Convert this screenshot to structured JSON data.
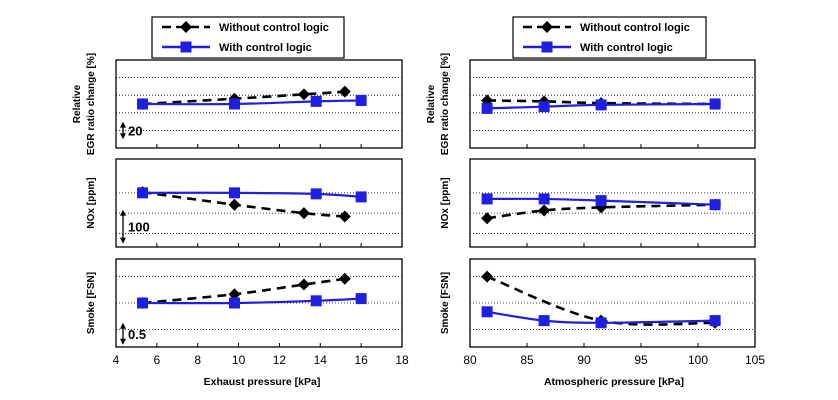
{
  "chart_data": [
    {
      "type": "line",
      "panel": "left",
      "xlabel": "Exhaust pressure   [kPa]",
      "xlim": [
        4,
        18
      ],
      "xticks": [
        4,
        6,
        8,
        10,
        12,
        14,
        16,
        18
      ],
      "legend": {
        "placement": "top",
        "entries": [
          {
            "label": "Without control logic",
            "color": "#000000",
            "marker": "diamond",
            "style": "dashed"
          },
          {
            "label": "With control logic",
            "color": "#1f1fe0",
            "marker": "square",
            "style": "solid"
          }
        ]
      },
      "subplots": [
        {
          "ylabel_lines": [
            "Relative",
            "EGR ratio change  [%]"
          ],
          "ylim": [
            -50,
            50
          ],
          "gridlines": [
            -30,
            -10,
            10,
            30
          ],
          "scale_bar": {
            "label": "20",
            "from": -40,
            "to": -20
          },
          "series": [
            {
              "name": "Without control logic",
              "x": [
                5.3,
                9.8,
                13.2,
                15.2
              ],
              "y": [
                0,
                6,
                11,
                14
              ]
            },
            {
              "name": "With control logic",
              "x": [
                5.3,
                9.8,
                13.8,
                16
              ],
              "y": [
                0,
                0,
                3,
                4
              ]
            }
          ]
        },
        {
          "ylabel_lines": [
            "NOx   [ppm]"
          ],
          "ylim": [
            -160,
            100
          ],
          "gridlines": [
            0,
            -60,
            -120
          ],
          "scale_bar": {
            "label": "100",
            "from": -150,
            "to": -50
          },
          "series": [
            {
              "name": "Without control logic",
              "x": [
                5.3,
                9.8,
                13.2,
                15.2
              ],
              "y": [
                2,
                -35,
                -60,
                -70
              ]
            },
            {
              "name": "With control logic",
              "x": [
                5.3,
                9.8,
                13.8,
                16
              ],
              "y": [
                0,
                0,
                -3,
                -12
              ]
            }
          ]
        },
        {
          "ylabel_lines": [
            "Smoke   [FSN]"
          ],
          "ylim": [
            -1.0,
            1.0
          ],
          "gridlines": [
            0.6,
            0.0,
            -0.6
          ],
          "scale_bar": {
            "label": "0.5",
            "from": -0.95,
            "to": -0.45
          },
          "series": [
            {
              "name": "Without control logic",
              "x": [
                5.3,
                9.8,
                13.2,
                15.2
              ],
              "y": [
                0,
                0.2,
                0.42,
                0.55
              ]
            },
            {
              "name": "With control logic",
              "x": [
                5.3,
                9.8,
                13.8,
                16
              ],
              "y": [
                0,
                0,
                0.05,
                0.1
              ]
            }
          ]
        }
      ]
    },
    {
      "type": "line",
      "panel": "right",
      "xlabel": "Atmospheric pressure  [kPa]",
      "xlim": [
        80,
        105
      ],
      "xticks": [
        80,
        85,
        90,
        95,
        100,
        105
      ],
      "legend": {
        "placement": "top",
        "entries": [
          {
            "label": "Without control logic",
            "color": "#000000",
            "marker": "diamond",
            "style": "dashed"
          },
          {
            "label": "With control logic",
            "color": "#1f1fe0",
            "marker": "square",
            "style": "solid"
          }
        ]
      },
      "subplots": [
        {
          "ylabel_lines": [
            "Relative",
            "EGR ratio change  [%]"
          ],
          "ylim": [
            -50,
            50
          ],
          "gridlines": [
            -30,
            -10,
            10,
            30
          ],
          "series": [
            {
              "name": "Without control logic",
              "x": [
                81.5,
                86.5,
                91.5,
                101.5
              ],
              "y": [
                4,
                3,
                1,
                0
              ]
            },
            {
              "name": "With control logic",
              "x": [
                81.5,
                86.5,
                91.5,
                101.5
              ],
              "y": [
                -5,
                -3,
                -1,
                0
              ]
            }
          ]
        },
        {
          "ylabel_lines": [
            "NOx   [ppm]"
          ],
          "ylim": [
            -160,
            100
          ],
          "gridlines": [
            0,
            -60,
            -120
          ],
          "series": [
            {
              "name": "Without control logic",
              "x": [
                81.5,
                86.5,
                91.5,
                101.5
              ],
              "y": [
                -75,
                -52,
                -43,
                -35
              ]
            },
            {
              "name": "With control logic",
              "x": [
                81.5,
                86.5,
                91.5,
                101.5
              ],
              "y": [
                -18,
                -18,
                -23,
                -35
              ]
            }
          ]
        },
        {
          "ylabel_lines": [
            "Smoke   [FSN]"
          ],
          "ylim": [
            -1.0,
            1.0
          ],
          "gridlines": [
            0.6,
            0.0,
            -0.6
          ],
          "series": [
            {
              "name": "Without control logic",
              "x": [
                81.5,
                91.5,
                101.5
              ],
              "y": [
                0.6,
                -0.4,
                -0.45
              ]
            },
            {
              "name": "With control logic",
              "x": [
                81.5,
                86.5,
                91.5,
                101.5
              ],
              "y": [
                -0.2,
                -0.4,
                -0.45,
                -0.4
              ]
            }
          ]
        }
      ]
    }
  ]
}
